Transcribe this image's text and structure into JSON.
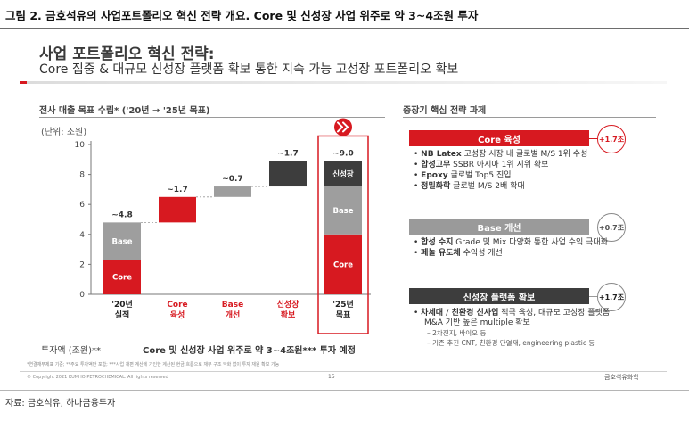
{
  "figure": {
    "title": "그림 2. 금호석유의 사업포트폴리오 혁신 전략 개요. Core 및 신성장 사업 위주로 약 3~4조원 투자",
    "source": "자료: 금호석유, 하나금융투자"
  },
  "slide": {
    "title": "사업 포트폴리오 혁신 전략:",
    "subtitle": "Core 집중 & 대규모 신성장 플랫폼 확보 통한 지속 가능 고성장 포트폴리오 확보",
    "left_heading": "전사 매출 목표 수립* ('20년 → '25년 목표)",
    "right_heading": "중장기 핵심 전략 과제",
    "unit": "(단위: 조원)",
    "invest_label": "투자액 (조원)**",
    "invest_text": "Core 및 신성장 사업 위주로 약 3~4조원*** 투자 예정",
    "footnote": "*연결재무제표 기준; **주요 투자액만 포함; ***사업 재편 계산에 기인한 계산된 현금 흐름으로 재무 구조 악화 없이 투자 재원 확보 가능",
    "copyright": "© Copyright 2021 KUMHO PETROCHEMICAL. All rights reserved",
    "page_number": "15",
    "company": "금호석유화학"
  },
  "chart_data": {
    "type": "bar",
    "subtype": "waterfall",
    "yaxis": {
      "min": 0,
      "max": 10,
      "ticks": [
        0,
        2,
        4,
        6,
        8,
        10
      ]
    },
    "categories": [
      {
        "line1": "'20년",
        "line2": "실적",
        "color": "#222222"
      },
      {
        "line1": "Core",
        "line2": "육성",
        "color": "#d71920"
      },
      {
        "line1": "Base",
        "line2": "개선",
        "color": "#d71920"
      },
      {
        "line1": "신성장",
        "line2": "확보",
        "color": "#d71920"
      },
      {
        "line1": "'25년",
        "line2": "목표",
        "color": "#222222"
      }
    ],
    "bars": [
      {
        "total_label": "~4.8",
        "stack": [
          {
            "name": "Core",
            "from": 0,
            "to": 2.3,
            "color": "#d71920",
            "label": "Core"
          },
          {
            "name": "Base",
            "from": 2.3,
            "to": 4.8,
            "color": "#9e9e9e",
            "label": "Base"
          }
        ]
      },
      {
        "total_label": "~1.7",
        "stack": [
          {
            "name": "Core",
            "from": 4.8,
            "to": 6.5,
            "color": "#d71920",
            "label": ""
          }
        ]
      },
      {
        "total_label": "~0.7",
        "stack": [
          {
            "name": "Base",
            "from": 6.5,
            "to": 7.2,
            "color": "#9e9e9e",
            "label": ""
          }
        ]
      },
      {
        "total_label": "~1.7",
        "stack": [
          {
            "name": "신성장",
            "from": 7.2,
            "to": 8.9,
            "color": "#3d3d3d",
            "label": ""
          }
        ]
      },
      {
        "total_label": "~9.0",
        "stack": [
          {
            "name": "Core",
            "from": 0,
            "to": 4.0,
            "color": "#d71920",
            "label": "Core"
          },
          {
            "name": "Base",
            "from": 4.0,
            "to": 7.2,
            "color": "#9e9e9e",
            "label": "Base"
          },
          {
            "name": "신성장",
            "from": 7.2,
            "to": 8.9,
            "color": "#3d3d3d",
            "label": "신성장"
          }
        ]
      }
    ],
    "highlight_icon": "double-chevron-right-icon",
    "accent_color": "#d71920"
  },
  "tasks": [
    {
      "title": "Core 육성",
      "badge": "+1.7조",
      "items": [
        {
          "bold": "NB Latex",
          "rest": " 고성장 시장 내 글로벌 M/S 1위 수성"
        },
        {
          "bold": "합성고무",
          "rest": " SSBR 아시아 1위 지위 확보"
        },
        {
          "bold": "Epoxy",
          "rest": " 글로벌 Top5 진입"
        },
        {
          "bold": "정밀화학",
          "rest": " 글로벌 M/S 2배 확대"
        }
      ]
    },
    {
      "title": "Base 개선",
      "badge": "+0.7조",
      "items": [
        {
          "bold": "합성 수지",
          "rest": " Grade 및 Mix 다양화 통한 사업 수익 극대화"
        },
        {
          "bold": "페놀 유도체",
          "rest": " 수익성 개선"
        }
      ]
    },
    {
      "title": "신성장 플랫폼 확보",
      "badge": "+1.7조",
      "items": [
        {
          "bold": "차세대 / 친환경 신사업",
          "rest": " 적극 육성, 대규모 고성장 플랫폼 M&A 기반 높은 multiple 확보"
        }
      ],
      "subitems": [
        "– 2차전지, 바이오 등",
        "– 기존 추진 CNT, 친환경 단열재, engineering plastic 등"
      ]
    }
  ]
}
